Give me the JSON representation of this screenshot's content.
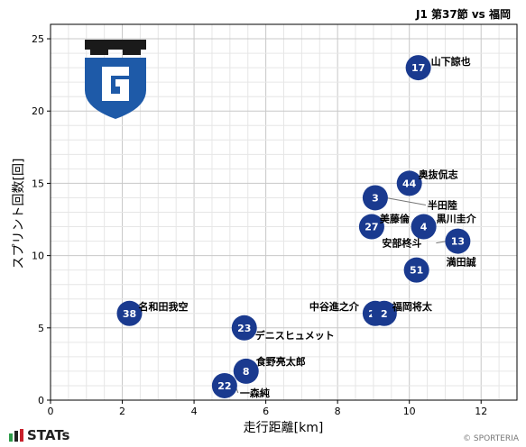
{
  "chart_data": {
    "type": "scatter",
    "title": "J1 第37節 vs 福岡",
    "xlabel": "走行距離[km]",
    "ylabel": "スプリント回数[回]",
    "xlim": [
      0,
      13
    ],
    "ylim": [
      0,
      26
    ],
    "xticks": [
      0,
      2,
      4,
      6,
      8,
      10,
      12
    ],
    "yticks": [
      0,
      5,
      10,
      15,
      20,
      25
    ],
    "grid": true,
    "point_color": "#1a3a8f",
    "points": [
      {
        "number": "17",
        "name": "山下諒也",
        "x": 10.25,
        "y": 23
      },
      {
        "number": "44",
        "name": "奥抜侃志",
        "x": 10.0,
        "y": 15
      },
      {
        "number": "3",
        "name": "半田陸",
        "x": 9.05,
        "y": 14
      },
      {
        "number": "27",
        "name": "美藤倫",
        "x": 8.95,
        "y": 12
      },
      {
        "number": "4",
        "name": "黒川圭介",
        "x": 10.4,
        "y": 12
      },
      {
        "number": "13",
        "name": "安部柊斗",
        "x": 11.35,
        "y": 11
      },
      {
        "number": "51",
        "name": "満田誠",
        "x": 10.2,
        "y": 9
      },
      {
        "number": "38",
        "name": "名和田我空",
        "x": 2.2,
        "y": 6
      },
      {
        "number": "20",
        "name": "中谷進之介",
        "x": 9.05,
        "y": 6
      },
      {
        "number": "2",
        "name": "福岡将太",
        "x": 9.3,
        "y": 6
      },
      {
        "number": "23",
        "name": "デニスヒュメット",
        "x": 5.4,
        "y": 5
      },
      {
        "number": "8",
        "name": "食野亮太郎",
        "x": 5.45,
        "y": 2
      },
      {
        "number": "22",
        "name": "一森純",
        "x": 4.85,
        "y": 1
      }
    ]
  },
  "branding": {
    "logo": "stats-logo",
    "logo_text": "STATs",
    "copyright": "© SPORTERIA",
    "team_emblem": "gamba-osaka-emblem",
    "emblem_colors": [
      "#1a1a1a",
      "#1e5aa8"
    ]
  }
}
